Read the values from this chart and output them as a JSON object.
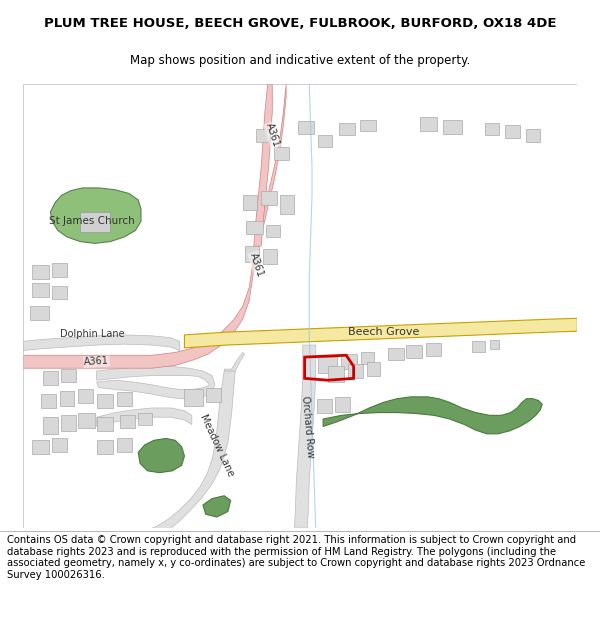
{
  "title": "PLUM TREE HOUSE, BEECH GROVE, FULBROOK, BURFORD, OX18 4DE",
  "subtitle": "Map shows position and indicative extent of the property.",
  "footer": "Contains OS data © Crown copyright and database right 2021. This information is subject to Crown copyright and database rights 2023 and is reproduced with the permission of HM Land Registry. The polygons (including the associated geometry, namely x, y co-ordinates) are subject to Crown copyright and database rights 2023 Ordnance Survey 100026316.",
  "bg_color": "#ffffff",
  "map_bg": "#f5f5f5",
  "title_fontsize": 9.5,
  "subtitle_fontsize": 8.5,
  "footer_fontsize": 7.2,
  "road_a361_color": "#f2c4c4",
  "road_a361_stroke": "#d08080",
  "road_main_color": "#f5e8a0",
  "road_main_stroke": "#c8a000",
  "road_minor_color": "#e0e0e0",
  "road_minor_stroke": "#bbbbbb",
  "building_color": "#d8d8d8",
  "building_stroke": "#aaaaaa",
  "green_dark_color": "#6b9e5e",
  "green_dark_stroke": "#4a7a3a",
  "green_light_color": "#8ec07a",
  "green_light_stroke": "#5a8050",
  "water_color": "#b8d8e8",
  "water_stroke": "#88b8d0",
  "property_stroke": "#cc0000",
  "property_lw": 2.0,
  "label_a361_top": "A361",
  "label_a361_mid": "A361",
  "label_a361_left": "A361",
  "label_beech_grove": "Beech Grove",
  "label_orchard_row": "Orchard Row",
  "label_meadow_lane": "Meadow Lane",
  "label_dolphin_lane": "Dolphin Lane",
  "label_church": "St James Church"
}
